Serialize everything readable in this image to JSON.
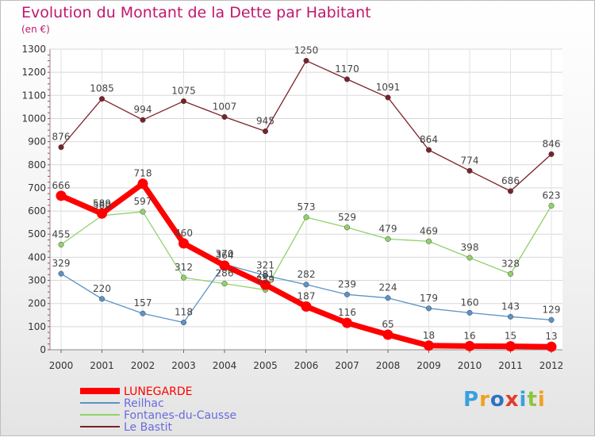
{
  "chart_data": {
    "type": "line",
    "title": "Evolution du Montant de la Dette par Habitant",
    "subtitle": "(en €)",
    "x": [
      "2000",
      "2001",
      "2002",
      "2003",
      "2004",
      "2005",
      "2006",
      "2007",
      "2008",
      "2009",
      "2010",
      "2011",
      "2012"
    ],
    "ylim": [
      0,
      1300
    ],
    "yticks": [
      0,
      100,
      200,
      300,
      400,
      500,
      600,
      700,
      800,
      900,
      1000,
      1100,
      1200,
      1300
    ],
    "grid": true,
    "legend_position": "bottom-left",
    "series": [
      {
        "name": "Le Bastit",
        "color": "#7a2229",
        "values": [
          876,
          1085,
          994,
          1075,
          1007,
          945,
          1250,
          1170,
          1091,
          864,
          774,
          686,
          846
        ]
      },
      {
        "name": "Fontanes-du-Causse",
        "color": "#8fd26a",
        "values": [
          455,
          580,
          597,
          312,
          286,
          259,
          573,
          529,
          479,
          469,
          398,
          328,
          623
        ]
      },
      {
        "name": "Reilhac",
        "color": "#5b93c7",
        "values": [
          329,
          220,
          157,
          118,
          370,
          321,
          282,
          239,
          224,
          179,
          160,
          143,
          129
        ]
      },
      {
        "name": "LUNEGARDE",
        "color": "#ff0000",
        "values": [
          666,
          589,
          718,
          460,
          364,
          281,
          187,
          116,
          65,
          18,
          16,
          15,
          13
        ]
      }
    ]
  },
  "logo_text": "Proxiti",
  "logo_colors": [
    "#3aa0e0",
    "#f0a020",
    "#2c73c0",
    "#e23b2a",
    "#3aa0e0",
    "#8cc63f",
    "#f0a020"
  ]
}
